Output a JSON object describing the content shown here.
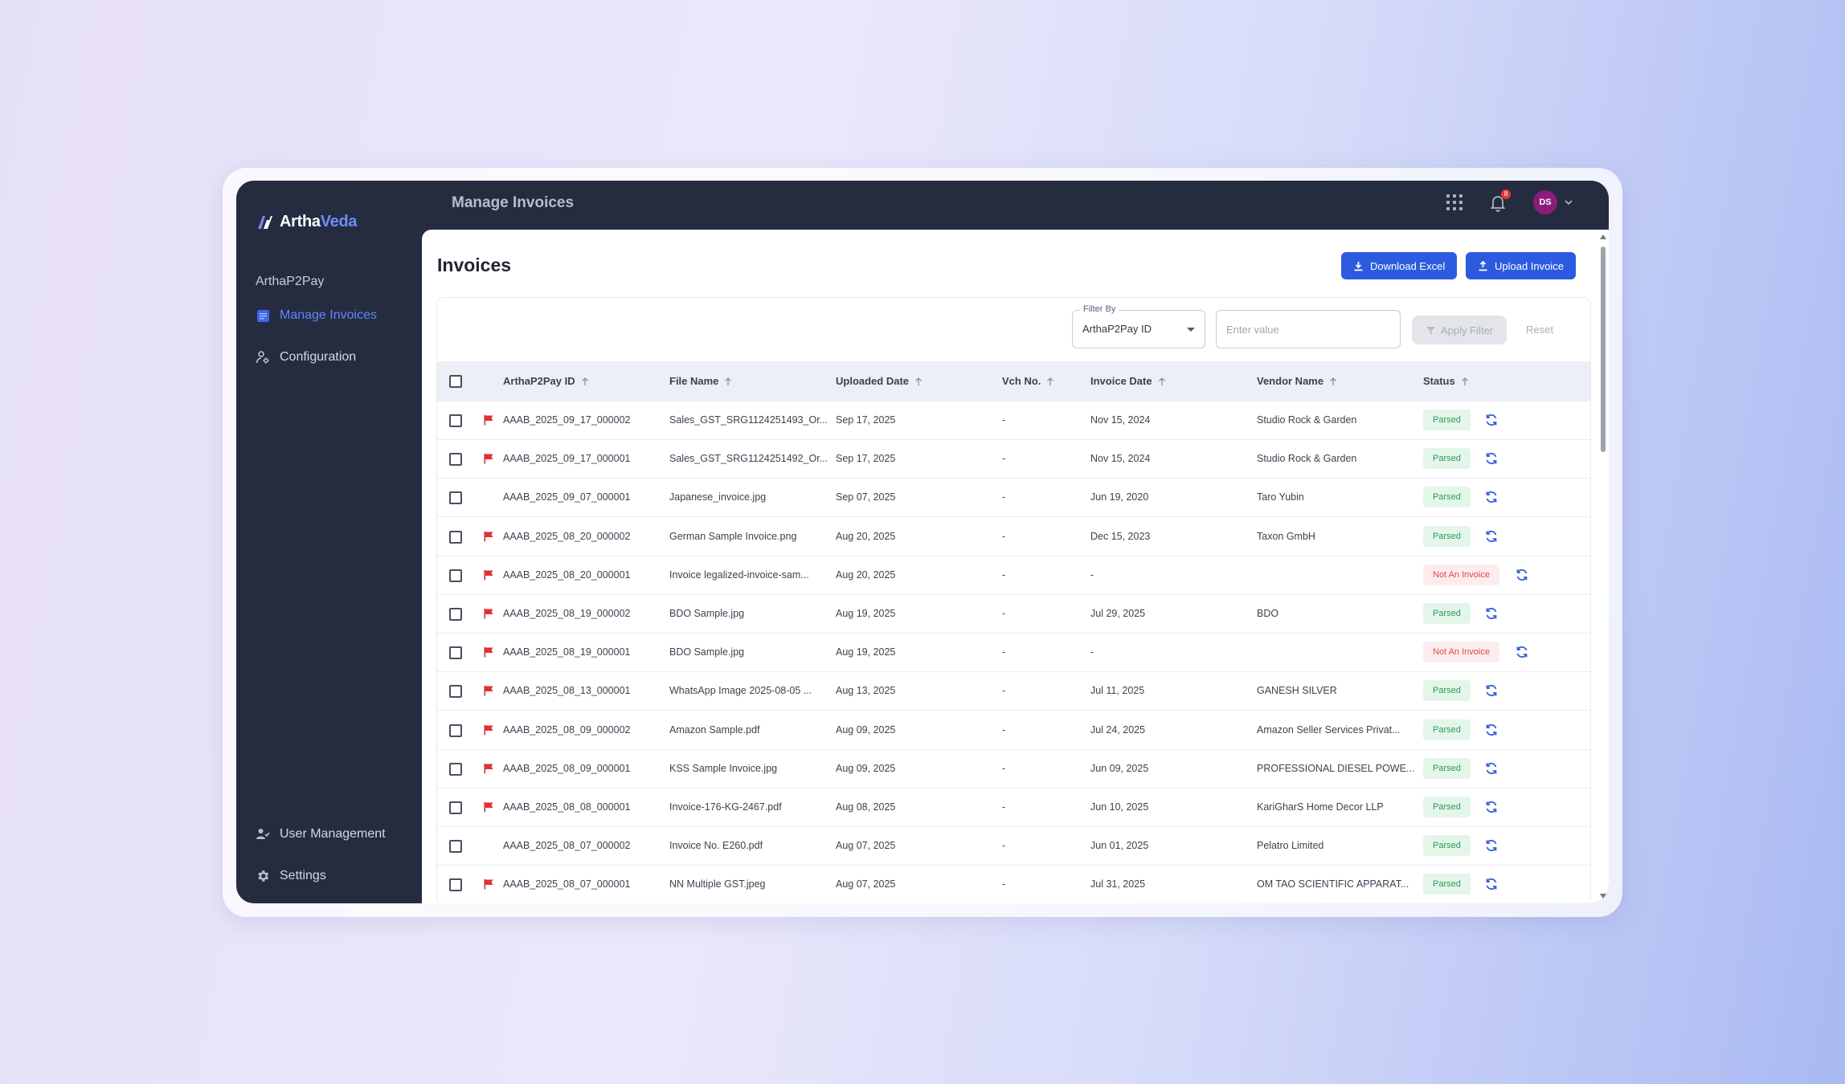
{
  "app": {
    "logo_part1": "Artha",
    "logo_part2": "Veda",
    "page_header": "Manage Invoices",
    "notification_count": "8",
    "avatar_initials": "DS"
  },
  "sidebar": {
    "section_title": "ArthaP2Pay",
    "items": [
      {
        "label": "Manage Invoices",
        "icon": "document-icon",
        "active": true
      },
      {
        "label": "Configuration",
        "icon": "user-config-icon",
        "active": false
      }
    ],
    "bottom_items": [
      {
        "label": "User Management",
        "icon": "users-icon"
      },
      {
        "label": "Settings",
        "icon": "gear-icon"
      }
    ]
  },
  "main": {
    "title": "Invoices",
    "download_excel_label": "Download Excel",
    "upload_invoice_label": "Upload Invoice",
    "filter": {
      "legend": "Filter By",
      "selected": "ArthaP2Pay ID",
      "value_placeholder": "Enter value",
      "apply_label": "Apply Filter",
      "reset_label": "Reset"
    },
    "columns": [
      "ArthaP2Pay ID",
      "File Name",
      "Uploaded Date",
      "Vch No.",
      "Invoice Date",
      "Vendor Name",
      "Status"
    ],
    "rows": [
      {
        "flag": true,
        "id": "AAAB_2025_09_17_000002",
        "file": "Sales_GST_SRG1124251493_Or...",
        "uploaded": "Sep 17, 2025",
        "vch": "-",
        "invoice_date": "Nov 15, 2024",
        "vendor": "Studio Rock & Garden",
        "status": "Parsed"
      },
      {
        "flag": true,
        "id": "AAAB_2025_09_17_000001",
        "file": "Sales_GST_SRG1124251492_Or...",
        "uploaded": "Sep 17, 2025",
        "vch": "-",
        "invoice_date": "Nov 15, 2024",
        "vendor": "Studio Rock & Garden",
        "status": "Parsed"
      },
      {
        "flag": false,
        "id": "AAAB_2025_09_07_000001",
        "file": "Japanese_invoice.jpg",
        "uploaded": "Sep 07, 2025",
        "vch": "-",
        "invoice_date": "Jun 19, 2020",
        "vendor": "Taro Yubin",
        "status": "Parsed"
      },
      {
        "flag": true,
        "id": "AAAB_2025_08_20_000002",
        "file": "German Sample Invoice.png",
        "uploaded": "Aug 20, 2025",
        "vch": "-",
        "invoice_date": "Dec 15, 2023",
        "vendor": "Taxon GmbH",
        "status": "Parsed"
      },
      {
        "flag": true,
        "id": "AAAB_2025_08_20_000001",
        "file": "Invoice legalized-invoice-sam...",
        "uploaded": "Aug 20, 2025",
        "vch": "-",
        "invoice_date": "-",
        "vendor": "",
        "status": "Not An Invoice"
      },
      {
        "flag": true,
        "id": "AAAB_2025_08_19_000002",
        "file": "BDO Sample.jpg",
        "uploaded": "Aug 19, 2025",
        "vch": "-",
        "invoice_date": "Jul 29, 2025",
        "vendor": "BDO",
        "status": "Parsed"
      },
      {
        "flag": true,
        "id": "AAAB_2025_08_19_000001",
        "file": "BDO Sample.jpg",
        "uploaded": "Aug 19, 2025",
        "vch": "-",
        "invoice_date": "-",
        "vendor": "",
        "status": "Not An Invoice"
      },
      {
        "flag": true,
        "id": "AAAB_2025_08_13_000001",
        "file": "WhatsApp Image 2025-08-05 ...",
        "uploaded": "Aug 13, 2025",
        "vch": "-",
        "invoice_date": "Jul 11, 2025",
        "vendor": "GANESH SILVER",
        "status": "Parsed"
      },
      {
        "flag": true,
        "id": "AAAB_2025_08_09_000002",
        "file": "Amazon Sample.pdf",
        "uploaded": "Aug 09, 2025",
        "vch": "-",
        "invoice_date": "Jul 24, 2025",
        "vendor": "Amazon Seller Services Privat...",
        "status": "Parsed"
      },
      {
        "flag": true,
        "id": "AAAB_2025_08_09_000001",
        "file": "KSS Sample Invoice.jpg",
        "uploaded": "Aug 09, 2025",
        "vch": "-",
        "invoice_date": "Jun 09, 2025",
        "vendor": "PROFESSIONAL DIESEL POWE...",
        "status": "Parsed"
      },
      {
        "flag": true,
        "id": "AAAB_2025_08_08_000001",
        "file": "Invoice-176-KG-2467.pdf",
        "uploaded": "Aug 08, 2025",
        "vch": "-",
        "invoice_date": "Jun 10, 2025",
        "vendor": "KariGharS Home Decor LLP",
        "status": "Parsed"
      },
      {
        "flag": false,
        "id": "AAAB_2025_08_07_000002",
        "file": "Invoice No. E260.pdf",
        "uploaded": "Aug 07, 2025",
        "vch": "-",
        "invoice_date": "Jun 01, 2025",
        "vendor": "Pelatro Limited",
        "status": "Parsed"
      },
      {
        "flag": true,
        "id": "AAAB_2025_08_07_000001",
        "file": "NN Multiple GST.jpeg",
        "uploaded": "Aug 07, 2025",
        "vch": "-",
        "invoice_date": "Jul 31, 2025",
        "vendor": "OM TAO SCIENTIFIC APPARAT...",
        "status": "Parsed"
      }
    ]
  },
  "colors": {
    "sidebar_bg": "#262c40",
    "accent": "#2d5bdf",
    "active_nav": "#5f86ff",
    "flag": "#e03131",
    "parsed_bg": "#e4f6ea",
    "parsed_text": "#2c9a57",
    "not_invoice_bg": "#fdeced",
    "not_invoice_text": "#e04747"
  }
}
